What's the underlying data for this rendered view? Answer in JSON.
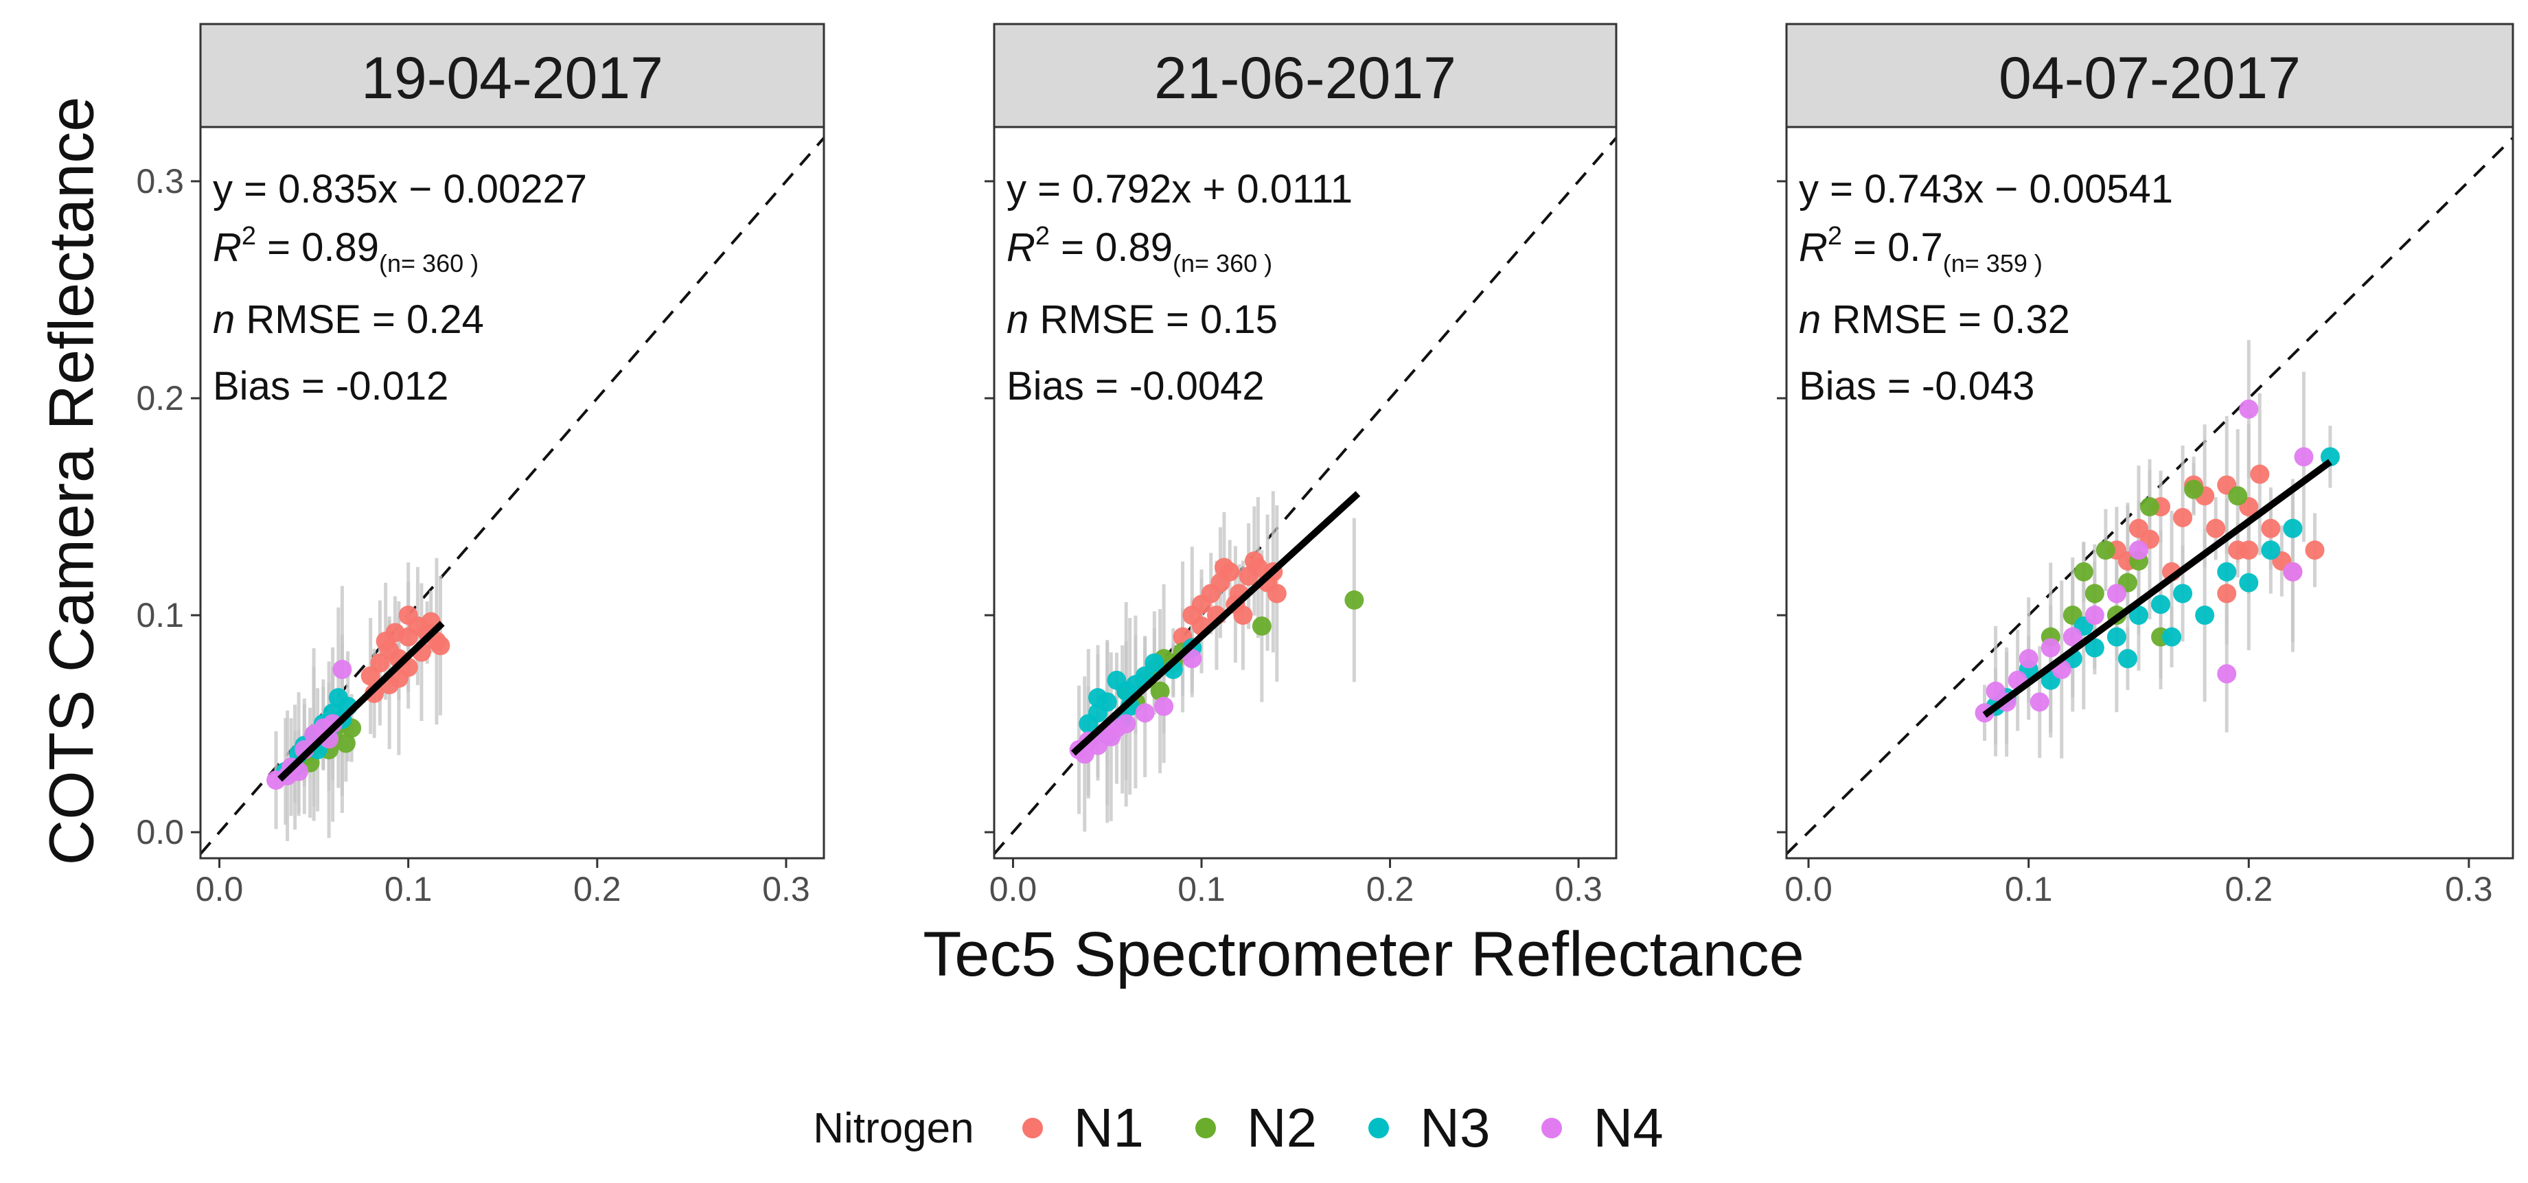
{
  "figure": {
    "ylabel": "COTS Camera Reflectance",
    "xlabel": "Tec5 Spectrometer Reflectance"
  },
  "legend": {
    "title": "Nitrogen",
    "items": [
      {
        "label": "N1",
        "color": "#f8766d"
      },
      {
        "label": "N2",
        "color": "#6aad2c"
      },
      {
        "label": "N3",
        "color": "#00bfc4"
      },
      {
        "label": "N4",
        "color": "#e07cf0"
      }
    ]
  },
  "chart_data": [
    {
      "type": "scatter",
      "title": "19-04-2017",
      "xlabel": "Tec5 Spectrometer Reflectance",
      "ylabel": "COTS Camera Reflectance",
      "xlim": [
        -0.01,
        0.32
      ],
      "ylim": [
        -0.012,
        0.325
      ],
      "xticks": [
        "0.0",
        "0.1",
        "0.2",
        "0.3"
      ],
      "yticks": [
        "0.0",
        "0.1",
        "0.2",
        "0.3"
      ],
      "annotations": {
        "equation": "y = 0.835x − 0.00227",
        "r2_label": "R",
        "r2_value": "= 0.89",
        "n_text": "(n= 360 )",
        "rmse": "RMSE = 0.24",
        "bias": "Bias = -0.012"
      },
      "fit_line": {
        "slope": 0.835,
        "intercept": -0.00227,
        "x_range": [
          0.032,
          0.118
        ]
      },
      "reference_line": "1:1 dashed",
      "series": [
        {
          "name": "N1",
          "points": [
            [
              0.08,
              0.072
            ],
            [
              0.085,
              0.078
            ],
            [
              0.09,
              0.084
            ],
            [
              0.095,
              0.08
            ],
            [
              0.1,
              0.09
            ],
            [
              0.105,
              0.095
            ],
            [
              0.11,
              0.092
            ],
            [
              0.115,
              0.088
            ],
            [
              0.09,
              0.068
            ],
            [
              0.1,
              0.1
            ],
            [
              0.082,
              0.064
            ],
            [
              0.095,
              0.071
            ],
            [
              0.107,
              0.083
            ],
            [
              0.112,
              0.097
            ],
            [
              0.088,
              0.088
            ],
            [
              0.1,
              0.076
            ],
            [
              0.117,
              0.086
            ],
            [
              0.093,
              0.092
            ]
          ]
        },
        {
          "name": "N2",
          "points": [
            [
              0.04,
              0.03
            ],
            [
              0.045,
              0.035
            ],
            [
              0.05,
              0.04
            ],
            [
              0.055,
              0.042
            ],
            [
              0.06,
              0.045
            ],
            [
              0.065,
              0.05
            ],
            [
              0.07,
              0.048
            ],
            [
              0.048,
              0.032
            ],
            [
              0.058,
              0.038
            ],
            [
              0.067,
              0.041
            ]
          ]
        },
        {
          "name": "N3",
          "points": [
            [
              0.035,
              0.028
            ],
            [
              0.042,
              0.036
            ],
            [
              0.05,
              0.044
            ],
            [
              0.055,
              0.05
            ],
            [
              0.06,
              0.055
            ],
            [
              0.063,
              0.062
            ],
            [
              0.068,
              0.058
            ],
            [
              0.045,
              0.04
            ],
            [
              0.052,
              0.038
            ],
            [
              0.058,
              0.047
            ],
            [
              0.04,
              0.03
            ],
            [
              0.065,
              0.052
            ]
          ]
        },
        {
          "name": "N4",
          "points": [
            [
              0.03,
              0.024
            ],
            [
              0.038,
              0.03
            ],
            [
              0.045,
              0.038
            ],
            [
              0.05,
              0.045
            ],
            [
              0.055,
              0.048
            ],
            [
              0.065,
              0.075
            ],
            [
              0.06,
              0.05
            ],
            [
              0.042,
              0.028
            ],
            [
              0.036,
              0.026
            ],
            [
              0.058,
              0.043
            ]
          ]
        }
      ]
    },
    {
      "type": "scatter",
      "title": "21-06-2017",
      "xlabel": "Tec5 Spectrometer Reflectance",
      "ylabel": "COTS Camera Reflectance",
      "xlim": [
        -0.01,
        0.32
      ],
      "ylim": [
        -0.012,
        0.325
      ],
      "xticks": [
        "0.0",
        "0.1",
        "0.2",
        "0.3"
      ],
      "yticks": [
        "0.0",
        "0.1",
        "0.2",
        "0.3"
      ],
      "annotations": {
        "equation": "y = 0.792x + 0.0111",
        "r2_label": "R",
        "r2_value": "= 0.89",
        "n_text": "(n= 360 )",
        "rmse": "RMSE = 0.15",
        "bias": "Bias = -0.0042"
      },
      "fit_line": {
        "slope": 0.792,
        "intercept": 0.0111,
        "x_range": [
          0.032,
          0.183
        ]
      },
      "reference_line": "1:1 dashed",
      "series": [
        {
          "name": "N1",
          "points": [
            [
              0.09,
              0.09
            ],
            [
              0.095,
              0.1
            ],
            [
              0.1,
              0.105
            ],
            [
              0.105,
              0.11
            ],
            [
              0.11,
              0.115
            ],
            [
              0.115,
              0.12
            ],
            [
              0.12,
              0.11
            ],
            [
              0.125,
              0.118
            ],
            [
              0.13,
              0.122
            ],
            [
              0.135,
              0.115
            ],
            [
              0.14,
              0.11
            ],
            [
              0.1,
              0.095
            ],
            [
              0.108,
              0.1
            ],
            [
              0.118,
              0.105
            ],
            [
              0.128,
              0.125
            ],
            [
              0.138,
              0.12
            ],
            [
              0.112,
              0.122
            ],
            [
              0.122,
              0.1
            ]
          ]
        },
        {
          "name": "N2",
          "points": [
            [
              0.07,
              0.07
            ],
            [
              0.075,
              0.075
            ],
            [
              0.08,
              0.08
            ],
            [
              0.085,
              0.078
            ],
            [
              0.09,
              0.083
            ],
            [
              0.132,
              0.095
            ],
            [
              0.181,
              0.107
            ],
            [
              0.06,
              0.065
            ],
            [
              0.065,
              0.06
            ],
            [
              0.078,
              0.065
            ]
          ]
        },
        {
          "name": "N3",
          "points": [
            [
              0.04,
              0.05
            ],
            [
              0.045,
              0.055
            ],
            [
              0.05,
              0.06
            ],
            [
              0.055,
              0.07
            ],
            [
              0.06,
              0.065
            ],
            [
              0.065,
              0.068
            ],
            [
              0.07,
              0.072
            ],
            [
              0.075,
              0.078
            ],
            [
              0.05,
              0.045
            ],
            [
              0.058,
              0.052
            ],
            [
              0.045,
              0.062
            ],
            [
              0.062,
              0.058
            ],
            [
              0.085,
              0.075
            ],
            [
              0.095,
              0.085
            ]
          ]
        },
        {
          "name": "N4",
          "points": [
            [
              0.035,
              0.038
            ],
            [
              0.04,
              0.042
            ],
            [
              0.045,
              0.04
            ],
            [
              0.05,
              0.046
            ],
            [
              0.055,
              0.048
            ],
            [
              0.06,
              0.05
            ],
            [
              0.07,
              0.055
            ],
            [
              0.08,
              0.058
            ],
            [
              0.095,
              0.08
            ],
            [
              0.038,
              0.036
            ],
            [
              0.052,
              0.044
            ]
          ]
        }
      ]
    },
    {
      "type": "scatter",
      "title": "04-07-2017",
      "xlabel": "Tec5 Spectrometer Reflectance",
      "ylabel": "COTS Camera Reflectance",
      "xlim": [
        -0.01,
        0.32
      ],
      "ylim": [
        -0.012,
        0.325
      ],
      "xticks": [
        "0.0",
        "0.1",
        "0.2",
        "0.3"
      ],
      "yticks": [
        "0.0",
        "0.1",
        "0.2",
        "0.3"
      ],
      "annotations": {
        "equation": "y = 0.743x − 0.00541",
        "r2_label": "R",
        "r2_value": "= 0.7",
        "n_text": "(n= 359 )",
        "rmse": "RMSE = 0.32",
        "bias": "Bias = -0.043"
      },
      "fit_line": {
        "slope": 0.743,
        "intercept": -0.00541,
        "x_range": [
          0.08,
          0.237
        ]
      },
      "reference_line": "1:1 dashed",
      "series": [
        {
          "name": "N1",
          "points": [
            [
              0.14,
              0.13
            ],
            [
              0.15,
              0.14
            ],
            [
              0.16,
              0.15
            ],
            [
              0.17,
              0.145
            ],
            [
              0.18,
              0.155
            ],
            [
              0.19,
              0.16
            ],
            [
              0.2,
              0.15
            ],
            [
              0.21,
              0.14
            ],
            [
              0.22,
              0.12
            ],
            [
              0.23,
              0.13
            ],
            [
              0.175,
              0.16
            ],
            [
              0.185,
              0.14
            ],
            [
              0.195,
              0.13
            ],
            [
              0.165,
              0.12
            ],
            [
              0.155,
              0.135
            ],
            [
              0.205,
              0.165
            ],
            [
              0.215,
              0.125
            ],
            [
              0.145,
              0.125
            ],
            [
              0.19,
              0.11
            ],
            [
              0.2,
              0.13
            ]
          ]
        },
        {
          "name": "N2",
          "points": [
            [
              0.12,
              0.1
            ],
            [
              0.125,
              0.12
            ],
            [
              0.13,
              0.11
            ],
            [
              0.135,
              0.13
            ],
            [
              0.14,
              0.1
            ],
            [
              0.145,
              0.115
            ],
            [
              0.15,
              0.125
            ],
            [
              0.155,
              0.15
            ],
            [
              0.175,
              0.158
            ],
            [
              0.195,
              0.155
            ],
            [
              0.11,
              0.09
            ],
            [
              0.16,
              0.09
            ]
          ]
        },
        {
          "name": "N3",
          "points": [
            [
              0.1,
              0.075
            ],
            [
              0.11,
              0.07
            ],
            [
              0.12,
              0.08
            ],
            [
              0.13,
              0.085
            ],
            [
              0.14,
              0.09
            ],
            [
              0.15,
              0.1
            ],
            [
              0.16,
              0.105
            ],
            [
              0.17,
              0.11
            ],
            [
              0.18,
              0.1
            ],
            [
              0.19,
              0.12
            ],
            [
              0.2,
              0.115
            ],
            [
              0.21,
              0.13
            ],
            [
              0.22,
              0.14
            ],
            [
              0.237,
              0.173
            ],
            [
              0.125,
              0.095
            ],
            [
              0.145,
              0.08
            ],
            [
              0.165,
              0.09
            ],
            [
              0.085,
              0.058
            ],
            [
              0.09,
              0.062
            ]
          ]
        },
        {
          "name": "N4",
          "points": [
            [
              0.08,
              0.055
            ],
            [
              0.085,
              0.065
            ],
            [
              0.09,
              0.06
            ],
            [
              0.095,
              0.07
            ],
            [
              0.1,
              0.08
            ],
            [
              0.11,
              0.085
            ],
            [
              0.12,
              0.09
            ],
            [
              0.13,
              0.1
            ],
            [
              0.14,
              0.11
            ],
            [
              0.15,
              0.13
            ],
            [
              0.2,
              0.195
            ],
            [
              0.19,
              0.073
            ],
            [
              0.225,
              0.173
            ],
            [
              0.22,
              0.12
            ],
            [
              0.105,
              0.06
            ],
            [
              0.115,
              0.075
            ]
          ]
        }
      ]
    }
  ]
}
